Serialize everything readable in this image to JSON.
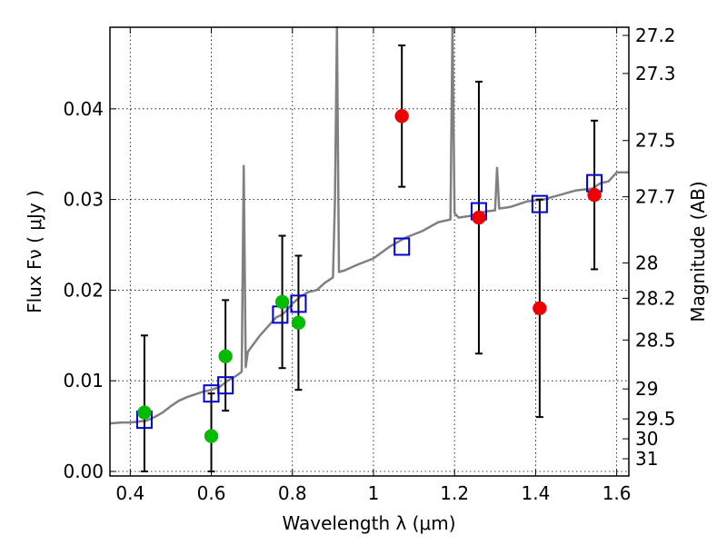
{
  "chart_data": {
    "type": "scatter",
    "xlabel": "Wavelength  λ (μm)",
    "ylabel": "Flux  Fν  ( μJy )",
    "y2label": "Magnitude (AB)",
    "xlim": [
      0.35,
      1.63
    ],
    "ylim": [
      -0.0005,
      0.049
    ],
    "grid": true,
    "x_ticks": [
      0.4,
      0.6,
      0.8,
      1.0,
      1.2,
      1.4,
      1.6
    ],
    "x_tick_labels": [
      "0.4",
      "0.6",
      "0.8",
      "1",
      "1.2",
      "1.4",
      "1.6"
    ],
    "y_ticks": [
      0.0,
      0.01,
      0.02,
      0.03,
      0.04
    ],
    "y_tick_labels": [
      "0.00",
      "0.01",
      "0.02",
      "0.03",
      "0.04"
    ],
    "y2_ticks": [
      {
        "label": "27.2",
        "flux": 0.0481
      },
      {
        "label": "27.3",
        "flux": 0.0439
      },
      {
        "label": "27.5",
        "flux": 0.0365
      },
      {
        "label": "27.7",
        "flux": 0.0303
      },
      {
        "label": "28",
        "flux": 0.023
      },
      {
        "label": "28.2",
        "flux": 0.0191
      },
      {
        "label": "28.5",
        "flux": 0.0145
      },
      {
        "label": "29",
        "flux": 0.0091
      },
      {
        "label": "29.5",
        "flux": 0.0058
      },
      {
        "label": "30",
        "flux": 0.0036
      },
      {
        "label": "31",
        "flux": 0.0014
      }
    ],
    "colors": {
      "model": "#808080",
      "model_points": "#0000cc",
      "green": "#00bb00",
      "red": "#ee0000",
      "errorbar": "#000000",
      "grid": "#000000"
    },
    "series": [
      {
        "kind": "model_spectrum",
        "x": [
          0.35,
          0.38,
          0.4,
          0.42,
          0.44,
          0.46,
          0.48,
          0.5,
          0.52,
          0.54,
          0.56,
          0.58,
          0.6,
          0.62,
          0.64,
          0.66,
          0.675,
          0.68,
          0.685,
          0.69,
          0.72,
          0.74,
          0.76,
          0.77,
          0.78,
          0.8,
          0.82,
          0.84,
          0.86,
          0.88,
          0.9,
          0.905,
          0.91,
          0.915,
          0.93,
          0.96,
          1.0,
          1.04,
          1.08,
          1.12,
          1.16,
          1.19,
          1.195,
          1.2,
          1.21,
          1.24,
          1.26,
          1.28,
          1.3,
          1.305,
          1.31,
          1.34,
          1.38,
          1.42,
          1.46,
          1.5,
          1.54,
          1.56,
          1.58,
          1.6,
          1.63
        ],
        "y": [
          0.0053,
          0.0054,
          0.0054,
          0.0055,
          0.0056,
          0.006,
          0.0065,
          0.0072,
          0.0078,
          0.0082,
          0.0085,
          0.0088,
          0.009,
          0.0093,
          0.01,
          0.0105,
          0.011,
          0.0337,
          0.0115,
          0.0132,
          0.015,
          0.016,
          0.017,
          0.0172,
          0.0175,
          0.0185,
          0.0193,
          0.0198,
          0.02,
          0.0208,
          0.0214,
          0.03,
          0.05,
          0.022,
          0.0222,
          0.0228,
          0.0235,
          0.0248,
          0.0258,
          0.0265,
          0.0275,
          0.0278,
          0.05,
          0.0285,
          0.028,
          0.0282,
          0.0285,
          0.0287,
          0.0288,
          0.0335,
          0.029,
          0.0292,
          0.0298,
          0.03,
          0.0305,
          0.031,
          0.0312,
          0.0318,
          0.032,
          0.033,
          0.033
        ]
      },
      {
        "kind": "model_points",
        "x": [
          0.435,
          0.6,
          0.635,
          0.77,
          0.815,
          1.07,
          1.26,
          1.41,
          1.545
        ],
        "y": [
          0.0057,
          0.0086,
          0.0095,
          0.0173,
          0.0185,
          0.0248,
          0.0287,
          0.0295,
          0.0318
        ]
      },
      {
        "kind": "green_observed",
        "x": [
          0.435,
          0.6,
          0.635,
          0.775,
          0.815
        ],
        "y": [
          0.0065,
          0.0039,
          0.0127,
          0.0187,
          0.0164
        ],
        "err_low": [
          0.0065,
          0.0039,
          0.006,
          0.0073,
          0.0074
        ],
        "err_high": [
          0.0085,
          0.0047,
          0.0062,
          0.0073,
          0.0074
        ]
      },
      {
        "kind": "red_observed",
        "x": [
          1.07,
          1.26,
          1.41,
          1.545
        ],
        "y": [
          0.0392,
          0.028,
          0.018,
          0.0305
        ],
        "err_low": [
          0.0078,
          0.015,
          0.012,
          0.0082
        ],
        "err_high": [
          0.0078,
          0.015,
          0.012,
          0.0082
        ]
      }
    ]
  }
}
